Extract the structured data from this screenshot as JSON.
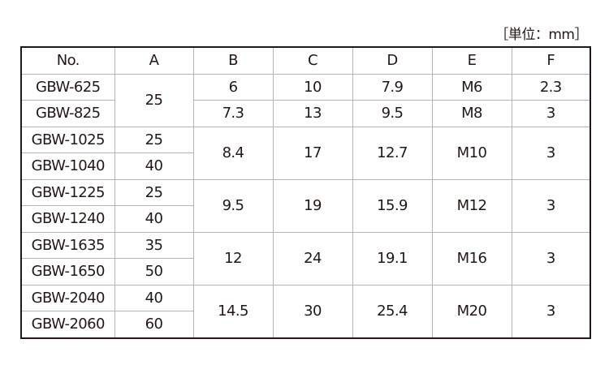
{
  "unit_label": "［単位：mm］",
  "headers": [
    "No.",
    "A",
    "B",
    "C",
    "D",
    "E",
    "F"
  ],
  "rows": [
    {
      "no": "GBW-625",
      "a": "25",
      "b": "6",
      "c": "10",
      "d": "7.9",
      "e": "M6",
      "f": "2.3"
    },
    {
      "no": "GBW-825",
      "b": "7.3",
      "c": "13",
      "d": "9.5",
      "e": "M8",
      "f": "3"
    },
    {
      "no": "GBW-1025",
      "a": "25",
      "b": "8.4",
      "c": "17",
      "d": "12.7",
      "e": "M10",
      "f": "3"
    },
    {
      "no": "GBW-1040",
      "a": "40"
    },
    {
      "no": "GBW-1225",
      "a": "25",
      "b": "9.5",
      "c": "19",
      "d": "15.9",
      "e": "M12",
      "f": "3"
    },
    {
      "no": "GBW-1240",
      "a": "40"
    },
    {
      "no": "GBW-1635",
      "a": "35",
      "b": "12",
      "c": "24",
      "d": "19.1",
      "e": "M16",
      "f": "3"
    },
    {
      "no": "GBW-1650",
      "a": "50"
    },
    {
      "no": "GBW-2040",
      "a": "40",
      "b": "14.5",
      "c": "30",
      "d": "25.4",
      "e": "M20",
      "f": "3"
    },
    {
      "no": "GBW-2060",
      "a": "60"
    }
  ]
}
